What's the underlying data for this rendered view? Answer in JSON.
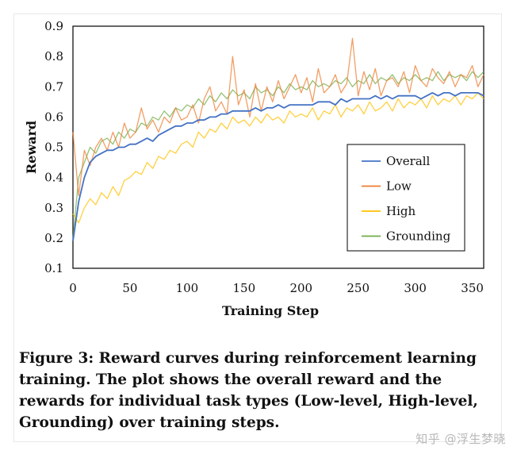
{
  "chart_data": {
    "type": "line",
    "title": "",
    "xlabel": "Training Step",
    "ylabel": "Reward",
    "xlim": [
      0,
      360
    ],
    "ylim": [
      0.1,
      0.9
    ],
    "x_ticks": [
      0,
      50,
      100,
      150,
      200,
      250,
      300,
      350
    ],
    "x_tick_labels": [
      "0",
      "50",
      "100",
      "150",
      "200",
      "250",
      "300",
      "350"
    ],
    "y_ticks": [
      0.1,
      0.2,
      0.3,
      0.4,
      0.5,
      0.6,
      0.7,
      0.8,
      0.9
    ],
    "y_tick_labels": [
      "0.1",
      "0.2",
      "0.3",
      "0.4",
      "0.5",
      "0.6",
      "0.7",
      "0.8",
      "0.9"
    ],
    "legend_position": "right",
    "x": [
      0,
      5,
      10,
      15,
      20,
      25,
      30,
      35,
      40,
      45,
      50,
      55,
      60,
      65,
      70,
      75,
      80,
      85,
      90,
      95,
      100,
      105,
      110,
      115,
      120,
      125,
      130,
      135,
      140,
      145,
      150,
      155,
      160,
      165,
      170,
      175,
      180,
      185,
      190,
      195,
      200,
      205,
      210,
      215,
      220,
      225,
      230,
      235,
      240,
      245,
      250,
      255,
      260,
      265,
      270,
      275,
      280,
      285,
      290,
      295,
      300,
      305,
      310,
      315,
      320,
      325,
      330,
      335,
      340,
      345,
      350,
      355,
      360
    ],
    "series": [
      {
        "name": "Overall",
        "color": "#4472c4",
        "values": [
          0.19,
          0.32,
          0.4,
          0.45,
          0.47,
          0.48,
          0.49,
          0.49,
          0.5,
          0.5,
          0.51,
          0.51,
          0.52,
          0.53,
          0.52,
          0.54,
          0.55,
          0.56,
          0.57,
          0.57,
          0.58,
          0.58,
          0.59,
          0.59,
          0.6,
          0.6,
          0.61,
          0.61,
          0.62,
          0.62,
          0.62,
          0.62,
          0.63,
          0.62,
          0.63,
          0.63,
          0.64,
          0.63,
          0.64,
          0.64,
          0.64,
          0.64,
          0.64,
          0.65,
          0.65,
          0.65,
          0.64,
          0.66,
          0.65,
          0.66,
          0.66,
          0.66,
          0.66,
          0.67,
          0.66,
          0.67,
          0.66,
          0.67,
          0.67,
          0.67,
          0.67,
          0.66,
          0.67,
          0.68,
          0.67,
          0.68,
          0.68,
          0.67,
          0.68,
          0.68,
          0.68,
          0.68,
          0.67
        ]
      },
      {
        "name": "Low",
        "color": "#ed7d31",
        "values": [
          0.55,
          0.34,
          0.49,
          0.44,
          0.5,
          0.53,
          0.49,
          0.55,
          0.5,
          0.58,
          0.53,
          0.55,
          0.63,
          0.56,
          0.59,
          0.55,
          0.6,
          0.58,
          0.63,
          0.59,
          0.6,
          0.64,
          0.58,
          0.66,
          0.7,
          0.62,
          0.65,
          0.61,
          0.8,
          0.64,
          0.69,
          0.6,
          0.71,
          0.62,
          0.7,
          0.65,
          0.72,
          0.66,
          0.7,
          0.74,
          0.68,
          0.73,
          0.65,
          0.76,
          0.68,
          0.7,
          0.74,
          0.68,
          0.71,
          0.86,
          0.67,
          0.75,
          0.69,
          0.76,
          0.67,
          0.72,
          0.73,
          0.7,
          0.75,
          0.68,
          0.77,
          0.72,
          0.7,
          0.76,
          0.73,
          0.71,
          0.75,
          0.7,
          0.74,
          0.73,
          0.77,
          0.7,
          0.74
        ]
      },
      {
        "name": "High",
        "color": "#ffc000",
        "values": [
          0.28,
          0.25,
          0.3,
          0.33,
          0.31,
          0.35,
          0.33,
          0.37,
          0.34,
          0.39,
          0.4,
          0.42,
          0.41,
          0.45,
          0.43,
          0.47,
          0.46,
          0.49,
          0.48,
          0.51,
          0.52,
          0.5,
          0.55,
          0.53,
          0.56,
          0.55,
          0.58,
          0.56,
          0.6,
          0.58,
          0.59,
          0.57,
          0.6,
          0.58,
          0.61,
          0.59,
          0.6,
          0.58,
          0.62,
          0.6,
          0.61,
          0.6,
          0.63,
          0.59,
          0.62,
          0.61,
          0.64,
          0.6,
          0.63,
          0.62,
          0.64,
          0.61,
          0.65,
          0.62,
          0.63,
          0.65,
          0.62,
          0.66,
          0.63,
          0.65,
          0.64,
          0.66,
          0.63,
          0.67,
          0.64,
          0.66,
          0.65,
          0.67,
          0.64,
          0.67,
          0.66,
          0.68,
          0.66
        ]
      },
      {
        "name": "Grounding",
        "color": "#70ad47",
        "values": [
          0.2,
          0.4,
          0.45,
          0.5,
          0.48,
          0.52,
          0.53,
          0.51,
          0.55,
          0.53,
          0.56,
          0.55,
          0.58,
          0.57,
          0.6,
          0.59,
          0.62,
          0.6,
          0.63,
          0.62,
          0.64,
          0.63,
          0.66,
          0.64,
          0.67,
          0.65,
          0.68,
          0.66,
          0.69,
          0.67,
          0.68,
          0.66,
          0.7,
          0.68,
          0.69,
          0.67,
          0.7,
          0.68,
          0.71,
          0.69,
          0.7,
          0.69,
          0.72,
          0.7,
          0.71,
          0.7,
          0.72,
          0.71,
          0.73,
          0.7,
          0.72,
          0.71,
          0.74,
          0.71,
          0.73,
          0.72,
          0.74,
          0.71,
          0.73,
          0.72,
          0.74,
          0.72,
          0.73,
          0.72,
          0.75,
          0.72,
          0.74,
          0.73,
          0.74,
          0.72,
          0.75,
          0.73,
          0.75
        ]
      }
    ]
  },
  "caption": "Figure 3: Reward curves during reinforcement learning training. The plot shows the overall reward and the rewards for individual task types (Low-level, High-level, Grounding) over training steps.",
  "watermark": "知乎 @浮生梦晓"
}
